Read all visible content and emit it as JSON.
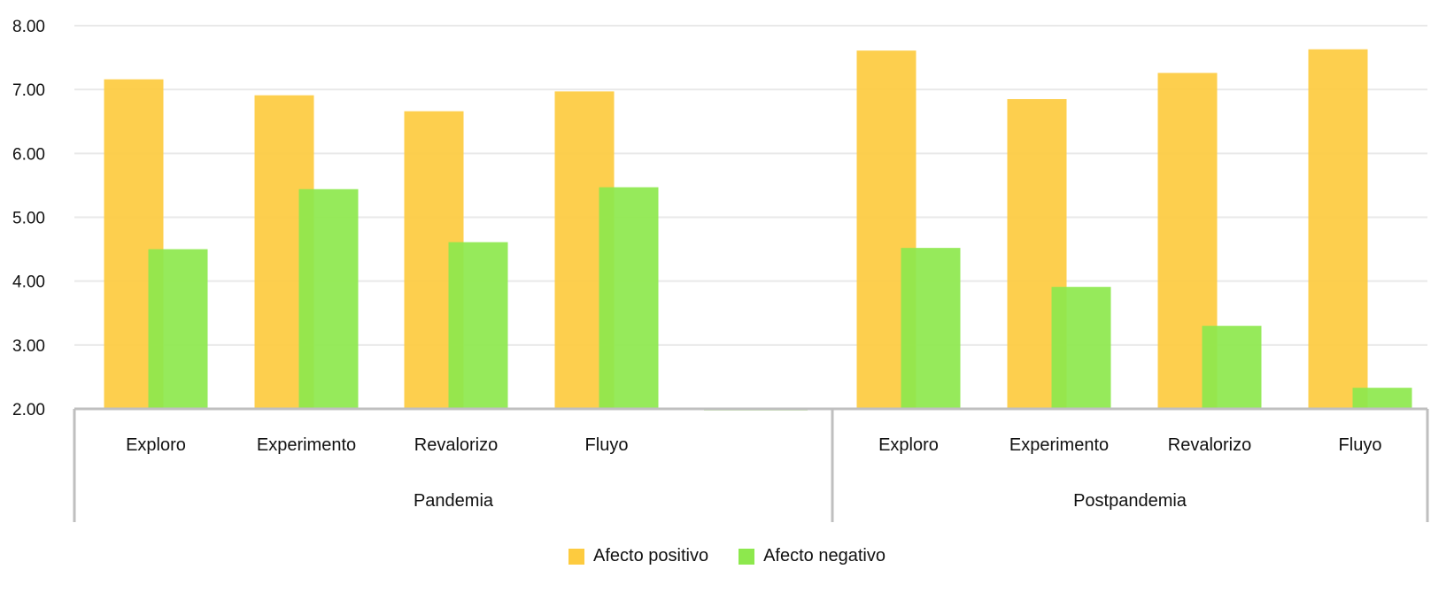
{
  "chart_data": {
    "type": "bar",
    "ylim": [
      2,
      8
    ],
    "yticks": [
      "2.00",
      "3.00",
      "4.00",
      "5.00",
      "6.00",
      "7.00",
      "8.00"
    ],
    "grid": true,
    "legend_position": "bottom",
    "groups": [
      {
        "name": "Pandemia",
        "categories": [
          "Exploro",
          "Experimento",
          "Revalorizo",
          "Fluyo",
          ""
        ]
      },
      {
        "name": "Postpandemia",
        "categories": [
          "Exploro",
          "Experimento",
          "Revalorizo",
          "Fluyo"
        ]
      }
    ],
    "series": [
      {
        "name": "Afecto positivo",
        "color": "#fdcb3f",
        "values": [
          7.16,
          6.91,
          6.66,
          6.97,
          null,
          7.61,
          6.85,
          7.26,
          7.63
        ]
      },
      {
        "name": "Afecto negativo",
        "color": "#8de84d",
        "values": [
          4.5,
          5.44,
          4.61,
          5.47,
          null,
          4.52,
          3.91,
          3.3,
          2.33
        ]
      }
    ]
  }
}
